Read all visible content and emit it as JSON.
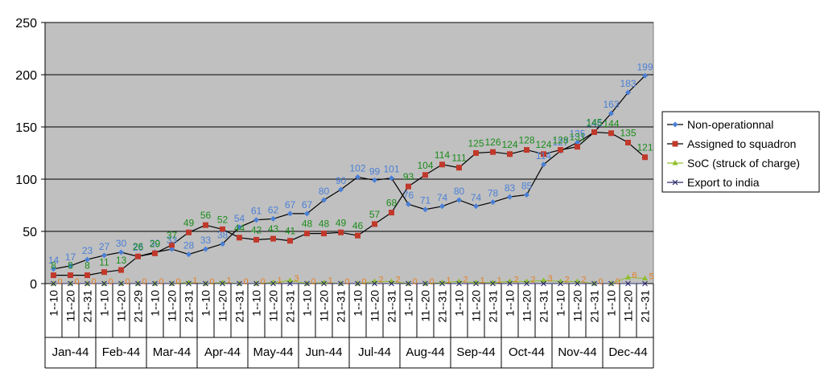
{
  "chart_data": {
    "type": "line",
    "title": "",
    "xlabel": "",
    "ylabel": "",
    "ylim": [
      0,
      250
    ],
    "yticks": [
      "0",
      "50",
      "100",
      "150",
      "200",
      "250"
    ],
    "grid": true,
    "legend_position": "right",
    "months": [
      "Jan-44",
      "Feb-44",
      "Mar-44",
      "Apr-44",
      "May-44",
      "Jun-44",
      "Jul-44",
      "Aug-44",
      "Sep-44",
      "Oct-44",
      "Nov-44",
      "Dec-44"
    ],
    "categories": [
      "1--10",
      "11--20",
      "21--31",
      "1--10",
      "11--20",
      "21--29",
      "1--10",
      "11--20",
      "21--31",
      "1--10",
      "11--20",
      "21--31",
      "1--10",
      "11--20",
      "21--31",
      "1--10",
      "11--20",
      "21--31",
      "1--10",
      "11--20",
      "21--31",
      "1--10",
      "11--20",
      "21--31",
      "1--10",
      "11--20",
      "21--31",
      "1--10",
      "11--20",
      "21--31",
      "1--10",
      "11--20",
      "21--31",
      "1--10",
      "11--20",
      "21--31"
    ],
    "series": [
      {
        "name": "Non-operationnal",
        "color": "#4a7fd6",
        "marker": "diamond",
        "values": [
          14,
          17,
          23,
          27,
          30,
          26,
          30,
          33,
          28,
          33,
          38,
          54,
          61,
          62,
          67,
          67,
          80,
          90,
          102,
          99,
          101,
          76,
          71,
          74,
          80,
          74,
          78,
          83,
          85,
          114,
          127,
          135,
          145,
          163,
          183,
          199
        ]
      },
      {
        "name": "Assigned to squadron",
        "color": "#c0392b",
        "label_color": "#1a8c1a",
        "marker": "square",
        "values": [
          8,
          8,
          8,
          11,
          13,
          26,
          29,
          37,
          49,
          56,
          52,
          44,
          42,
          43,
          41,
          48,
          48,
          49,
          46,
          57,
          68,
          93,
          104,
          114,
          111,
          125,
          126,
          124,
          128,
          124,
          128,
          131,
          145,
          144,
          135,
          121
        ]
      },
      {
        "name": "SoC (struck of charge)",
        "color": "#8fbf2f",
        "label_color": "#e67e22",
        "marker": "triangle",
        "values": [
          0,
          0,
          0,
          0,
          0,
          0,
          0,
          0,
          1,
          0,
          1,
          0,
          0,
          1,
          3,
          0,
          1,
          0,
          0,
          2,
          2,
          0,
          0,
          1,
          2,
          1,
          1,
          2,
          2,
          3,
          2,
          2,
          0,
          0,
          6,
          5
        ]
      },
      {
        "name": "Export to india",
        "color": "#2c2c6e",
        "marker": "x",
        "values": [
          0,
          0,
          0,
          0,
          0,
          0,
          0,
          0,
          0,
          0,
          0,
          0,
          0,
          0,
          0,
          0,
          0,
          0,
          0,
          0,
          0,
          0,
          0,
          0,
          0,
          0,
          0,
          0,
          0,
          0,
          0,
          0,
          0,
          0,
          0,
          0
        ]
      }
    ]
  }
}
